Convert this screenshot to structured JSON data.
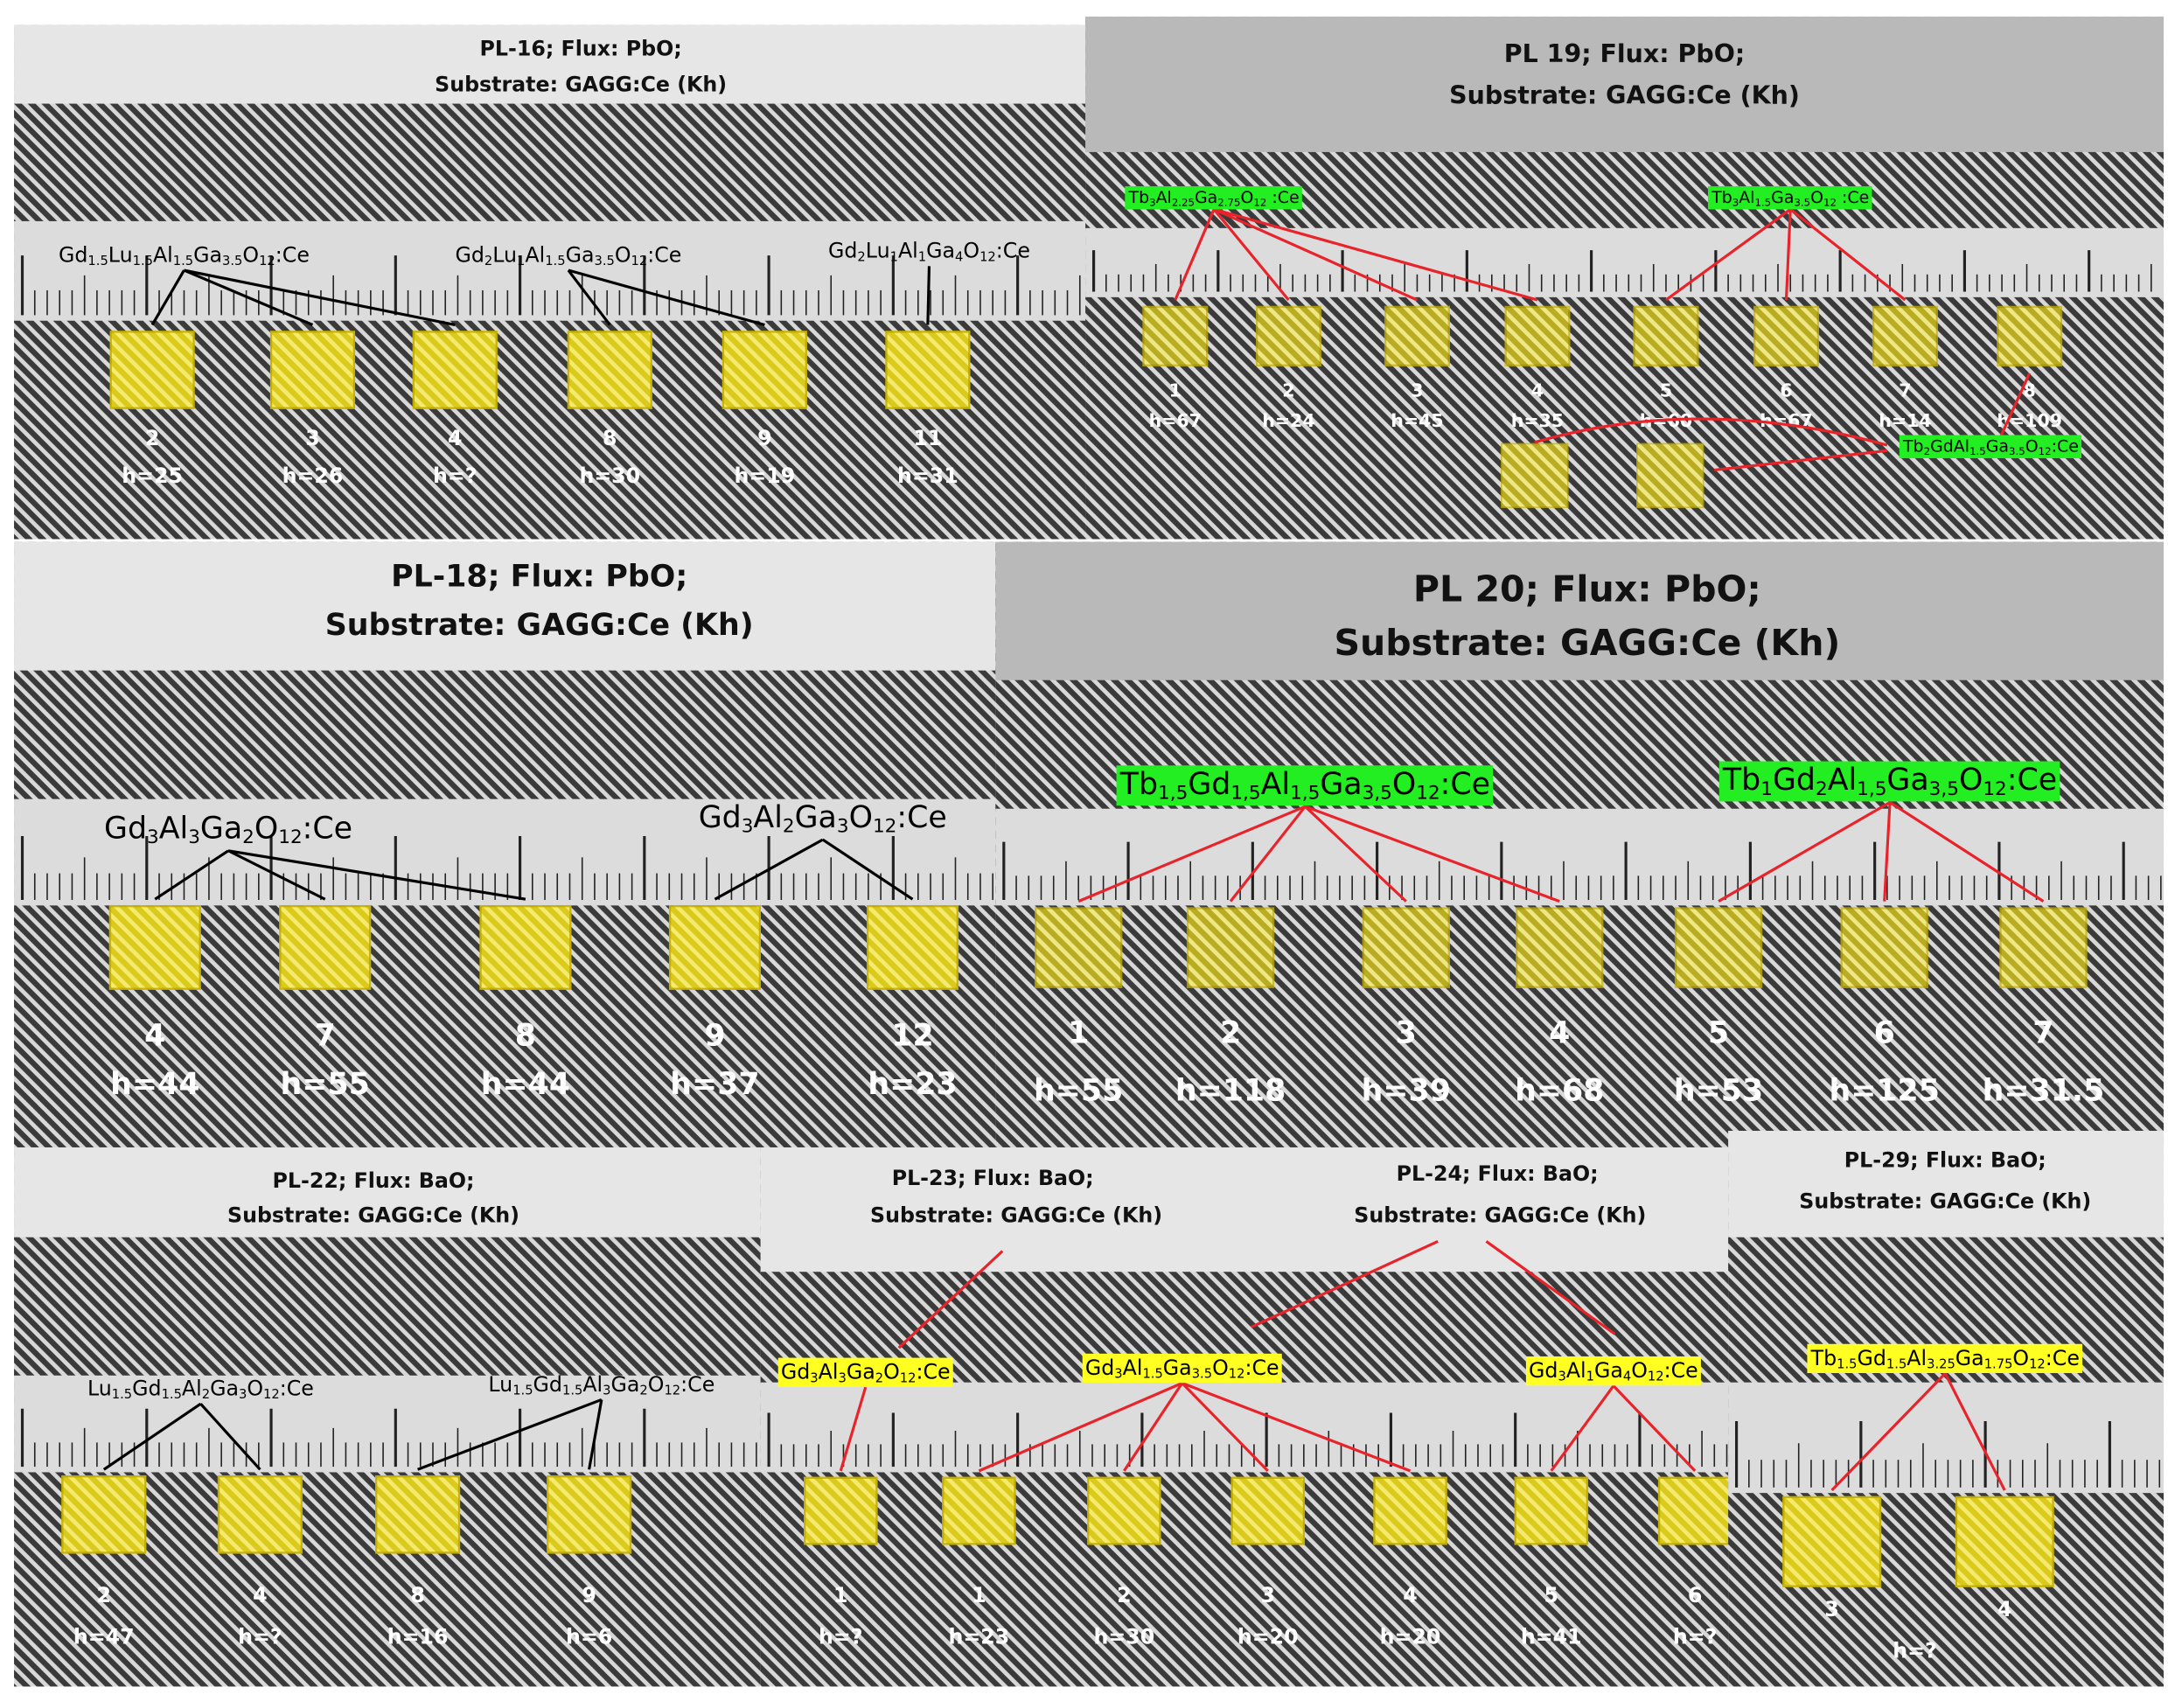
{
  "panels": [
    {
      "title_lines": [
        "PL-16; Flux: PbO;",
        "Substrate: GAGG:Ce (Kh)"
      ],
      "formulas": [
        "Gd1.5Lu1.5Al1.5Ga3.5O12:Ce",
        "Gd2Lu1Al1.5Ga3.5O12:Ce",
        "Gd2Lu1Al1Ga4O12:Ce"
      ],
      "samples": [
        {
          "label": "2",
          "h": "h=25"
        },
        {
          "label": "3",
          "h": "h=26"
        },
        {
          "label": "4",
          "h": "h=?"
        },
        {
          "label": "8",
          "h": "h=30"
        },
        {
          "label": "9",
          "h": "h=19"
        },
        {
          "label": "11",
          "h": "h=31"
        }
      ]
    },
    {
      "title_lines": [
        "PL 19; Flux: PbO;",
        "Substrate: GAGG:Ce (Kh)"
      ],
      "formulas": [
        "Tb3Al2.25Ga2.75O12 :Ce",
        "Tb3Al1.5Ga3.5O12 :Ce",
        "Tb2GdAl1.5Ga3.5O12:Ce"
      ],
      "samples": [
        {
          "label": "1",
          "h": "h=67"
        },
        {
          "label": "2",
          "h": "h=24"
        },
        {
          "label": "3",
          "h": "h=45"
        },
        {
          "label": "4",
          "h": "h=35"
        },
        {
          "label": "5",
          "h": "h=60"
        },
        {
          "label": "6",
          "h": "h=67"
        },
        {
          "label": "7",
          "h": "h=14"
        },
        {
          "label": "8",
          "h": "h=109"
        }
      ]
    },
    {
      "title_lines": [
        "PL-18; Flux: PbO;",
        "Substrate: GAGG:Ce (Kh)"
      ],
      "formulas": [
        "Gd3Al3Ga2O12:Ce",
        "Gd3Al2Ga3O12:Ce"
      ],
      "samples": [
        {
          "label": "4",
          "h": "h=44"
        },
        {
          "label": "7",
          "h": "h=55"
        },
        {
          "label": "8",
          "h": "h=44"
        },
        {
          "label": "9",
          "h": "h=37"
        },
        {
          "label": "12",
          "h": "h=23"
        }
      ]
    },
    {
      "title_lines": [
        "PL 20; Flux: PbO;",
        "Substrate: GAGG:Ce (Kh)"
      ],
      "formulas": [
        "Tb1,5Gd1,5Al1,5Ga3,5O12:Ce",
        "Tb1Gd2Al1,5Ga3,5O12:Ce"
      ],
      "samples": [
        {
          "label": "1",
          "h": "h=55"
        },
        {
          "label": "2",
          "h": "h=118"
        },
        {
          "label": "3",
          "h": "h=39"
        },
        {
          "label": "4",
          "h": "h=68"
        },
        {
          "label": "5",
          "h": "h=53"
        },
        {
          "label": "6",
          "h": "h=125"
        },
        {
          "label": "7",
          "h": "h=31.5"
        }
      ]
    },
    {
      "title_lines": [
        "PL-22; Flux: BaO;",
        "Substrate: GAGG:Ce (Kh)"
      ],
      "formulas": [
        "Lu1.5Gd1.5Al2Ga3O12:Ce",
        "Lu1.5Gd1.5Al3Ga2O12:Ce"
      ],
      "samples": [
        {
          "label": "2",
          "h": "h=47"
        },
        {
          "label": "4",
          "h": "h=?"
        },
        {
          "label": "8",
          "h": "h=16"
        },
        {
          "label": "9",
          "h": "h=6"
        }
      ]
    },
    {
      "title_lines": [
        "PL-23; Flux: BaO;",
        "Substrate: GAGG:Ce (Kh)",
        "PL-24; Flux: BaO;",
        "Substrate: GAGG:Ce (Kh)"
      ],
      "formulas": [
        "Gd3Al3Ga2O12:Ce",
        "Gd3Al1.5Ga3.5O12:Ce",
        "Gd3Al1Ga4O12:Ce"
      ],
      "samples": [
        {
          "label": "1",
          "h": "h=?"
        },
        {
          "label": "1",
          "h": "h=23"
        },
        {
          "label": "2",
          "h": "h=30"
        },
        {
          "label": "3",
          "h": "h=20"
        },
        {
          "label": "4",
          "h": "h=20"
        },
        {
          "label": "5",
          "h": "h=41"
        },
        {
          "label": "6",
          "h": "h=?"
        }
      ]
    },
    {
      "title_lines": [
        "PL-29; Flux: BaO;",
        "Substrate: GAGG:Ce (Kh)"
      ],
      "formulas": [
        "Tb1.5Gd1.5Al3.25Ga1.75O12:Ce"
      ],
      "samples": [
        {
          "label": "3"
        },
        {
          "label": "4"
        }
      ],
      "note": "h=?"
    }
  ]
}
